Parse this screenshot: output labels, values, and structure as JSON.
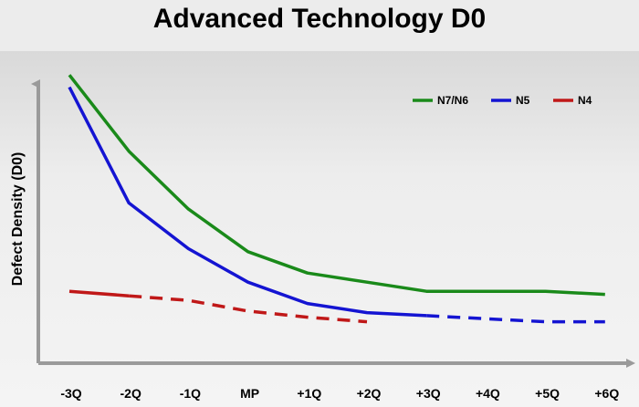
{
  "title": "Advanced Technology D0",
  "chart_data": {
    "type": "line",
    "title": "Advanced Technology D0",
    "xlabel": "",
    "ylabel": "Defect Density (D0)",
    "categories": [
      "-3Q",
      "-2Q",
      "-1Q",
      "MP",
      "+1Q",
      "+2Q",
      "+3Q",
      "+4Q",
      "+5Q",
      "+6Q"
    ],
    "ylim": [
      0,
      100
    ],
    "grid": false,
    "legend": "top-right",
    "series": [
      {
        "name": "N7/N6",
        "color": "#1a8a1a",
        "style": "solid",
        "values": [
          94,
          69,
          50,
          36,
          29,
          26,
          23,
          23,
          23,
          22
        ]
      },
      {
        "name": "N5",
        "color": "#1414d2",
        "style": "solid-then-dashed",
        "solid_until": "+3Q",
        "values": [
          90,
          52,
          37,
          26,
          19,
          16,
          15,
          14,
          13,
          13
        ]
      },
      {
        "name": "N4",
        "color": "#c01818",
        "style": "solid-then-dashed",
        "solid_until": "-2Q",
        "values": [
          23,
          21.5,
          20,
          16.5,
          14.5,
          13,
          null,
          null,
          null,
          null
        ]
      }
    ]
  }
}
